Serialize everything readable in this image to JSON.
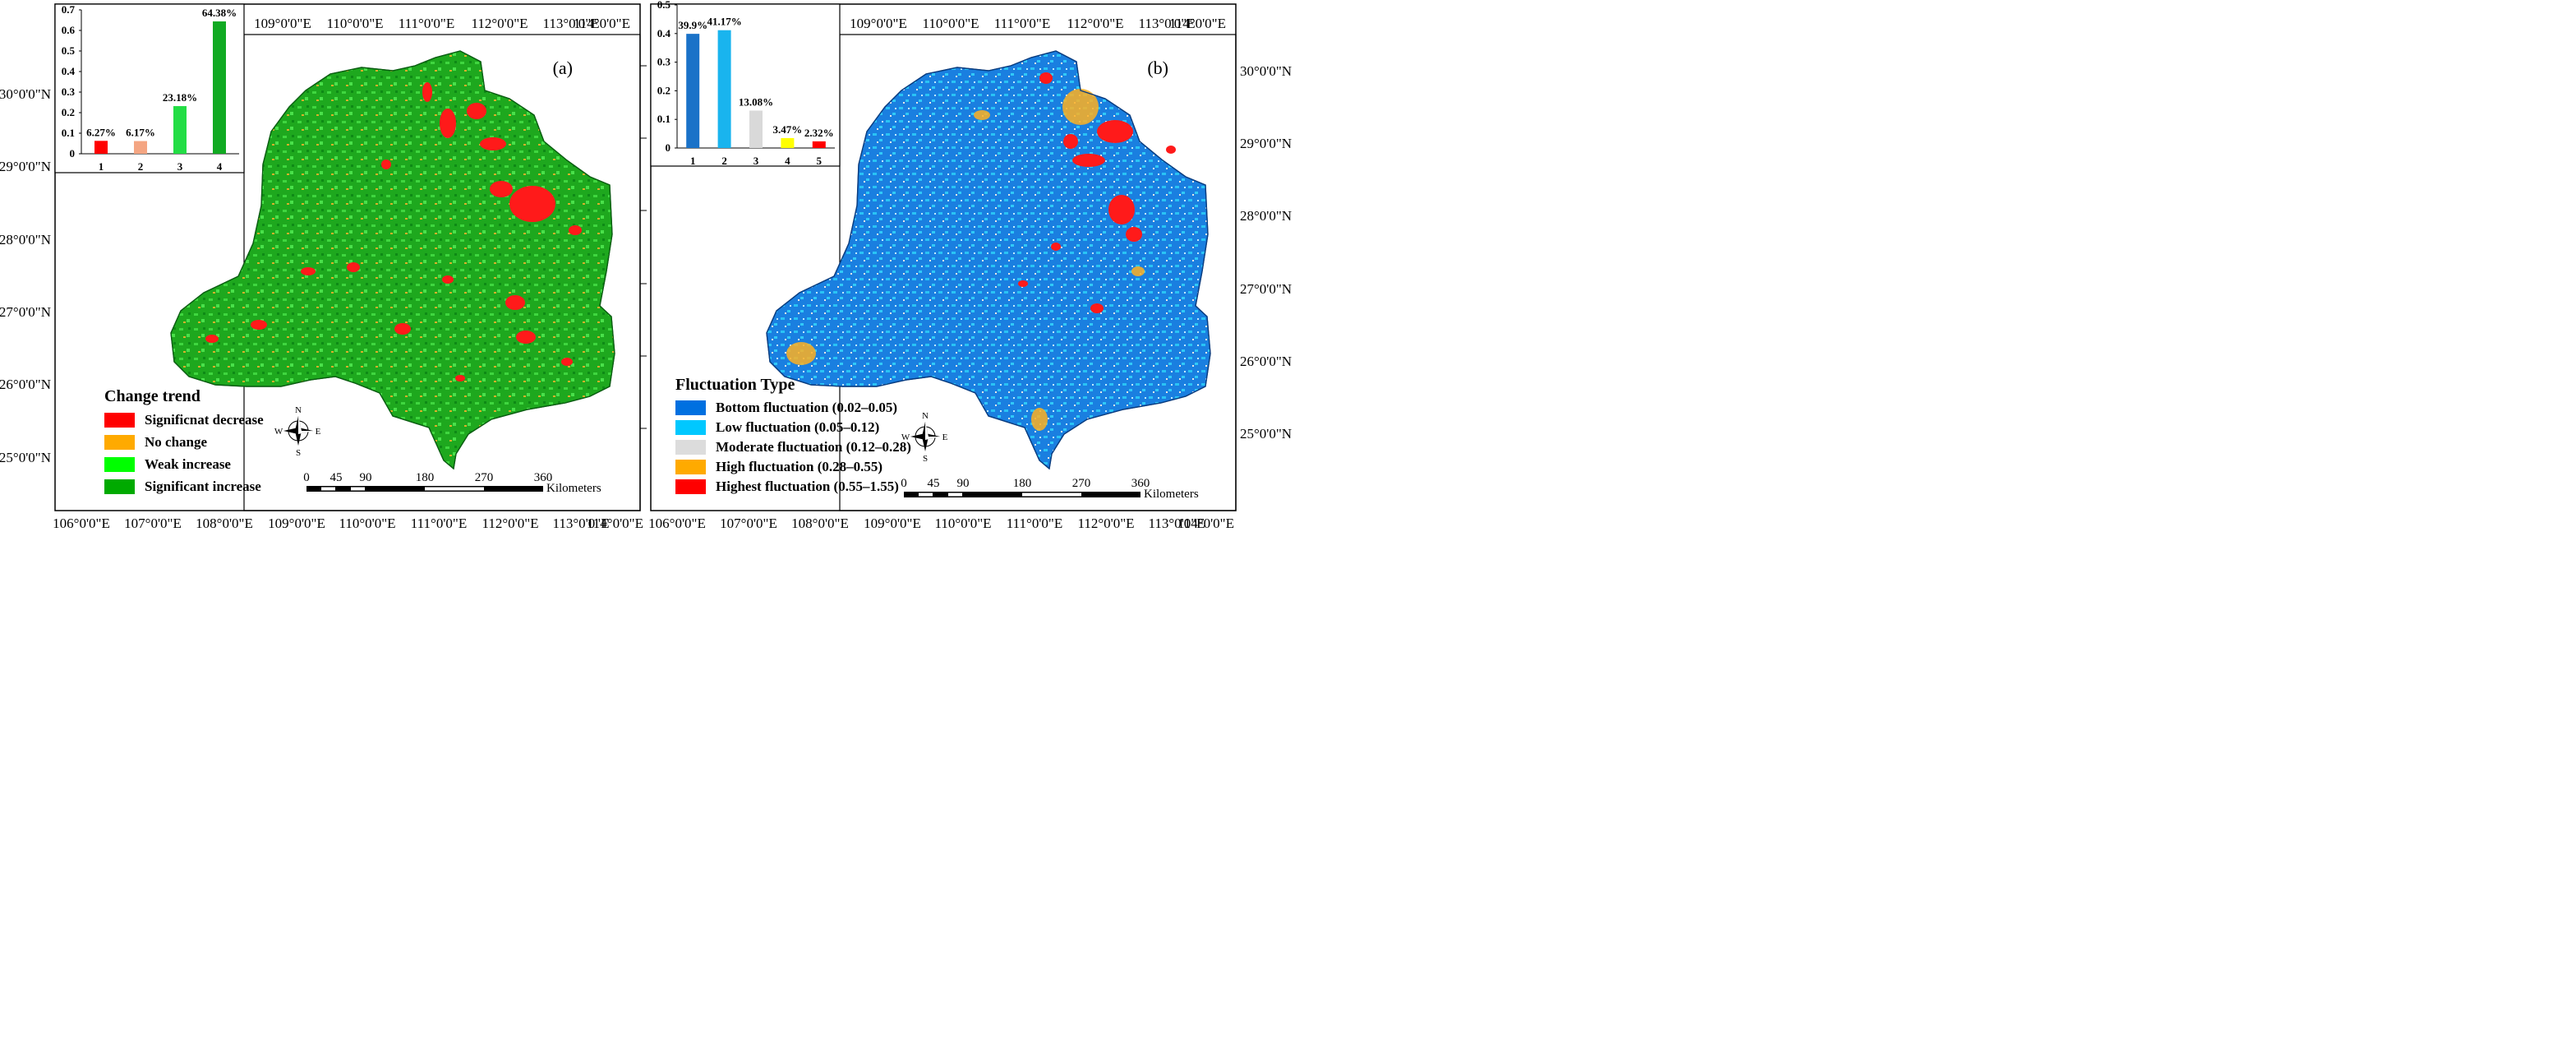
{
  "panel_a": {
    "label": "(a)",
    "top_axis": [
      "109°0'0\"E",
      "110°0'0\"E",
      "111°0'0\"E",
      "112°0'0\"E",
      "113°0'0\"E",
      "114°0'0\"E"
    ],
    "bottom_axis": [
      "106°0'0\"E",
      "107°0'0\"E",
      "108°0'0\"E",
      "109°0'0\"E",
      "110°0'0\"E",
      "111°0'0\"E",
      "112°0'0\"E",
      "113°0'0\"E",
      "114°0'0\"E"
    ],
    "left_axis": [
      "30°0'0\"N",
      "29°0'0\"N",
      "28°0'0\"N",
      "27°0'0\"N",
      "26°0'0\"N",
      "25°0'0\"N"
    ],
    "legend": {
      "title": "Change trend",
      "items": [
        {
          "label": "Significnat decrease",
          "color": "#ff0000"
        },
        {
          "label": "No change",
          "color": "#ffaa00"
        },
        {
          "label": "Weak increase",
          "color": "#00ff00"
        },
        {
          "label": "Significant increase",
          "color": "#00aa00"
        }
      ]
    },
    "scale_bar": {
      "ticks": [
        "0",
        "45",
        "90",
        "180",
        "270",
        "360"
      ],
      "unit": "Kilometers"
    },
    "compass": {
      "n": "N",
      "s": "S",
      "e": "E",
      "w": "W"
    }
  },
  "panel_b": {
    "label": "(b)",
    "top_axis": [
      "109°0'0\"E",
      "110°0'0\"E",
      "111°0'0\"E",
      "112°0'0\"E",
      "113°0'0\"E",
      "114°0'0\"E"
    ],
    "bottom_axis": [
      "106°0'0\"E",
      "107°0'0\"E",
      "108°0'0\"E",
      "109°0'0\"E",
      "110°0'0\"E",
      "111°0'0\"E",
      "112°0'0\"E",
      "113°0'0\"E",
      "114°0'0\"E"
    ],
    "right_axis": [
      "30°0'0\"N",
      "29°0'0\"N",
      "28°0'0\"N",
      "27°0'0\"N",
      "26°0'0\"N",
      "25°0'0\"N"
    ],
    "legend": {
      "title": "Fluctuation Type",
      "items": [
        {
          "label": "Bottom fluctuation (0.02–0.05)",
          "color": "#0070e0"
        },
        {
          "label": "Low fluctuation (0.05–0.12)",
          "color": "#00c8ff"
        },
        {
          "label": "Moderate fluctuation (0.12–0.28)",
          "color": "#dcdcdc"
        },
        {
          "label": "High fluctuation (0.28–0.55)",
          "color": "#ffaa00"
        },
        {
          "label": "Highest fluctuation (0.55–1.55)",
          "color": "#ff0000"
        }
      ]
    },
    "scale_bar": {
      "ticks": [
        "0",
        "45",
        "90",
        "180",
        "270",
        "360"
      ],
      "unit": "Kilometers"
    },
    "compass": {
      "n": "N",
      "s": "S",
      "e": "E",
      "w": "W"
    }
  },
  "chart_data": [
    {
      "type": "bar",
      "categories": [
        "1",
        "2",
        "3",
        "4"
      ],
      "values": [
        0.0627,
        0.0617,
        0.2318,
        0.6438
      ],
      "data_labels": [
        "6.27%",
        "6.17%",
        "23.18%",
        "64.38%"
      ],
      "colors": [
        "#ff0000",
        "#f4a582",
        "#22dd44",
        "#11aa22"
      ],
      "yticks": [
        "0",
        "0.1",
        "0.2",
        "0.3",
        "0.4",
        "0.5",
        "0.6",
        "0.7"
      ],
      "ylim": [
        0,
        0.7
      ]
    },
    {
      "type": "bar",
      "categories": [
        "1",
        "2",
        "3",
        "4",
        "5"
      ],
      "values": [
        0.399,
        0.4117,
        0.1308,
        0.0347,
        0.0232
      ],
      "data_labels": [
        "39.9%",
        "41.17%",
        "13.08%",
        "3.47%",
        "2.32%"
      ],
      "colors": [
        "#1a72c8",
        "#19b4ee",
        "#d9d9d9",
        "#ffff00",
        "#ff0000"
      ],
      "yticks": [
        "0",
        "0.1",
        "0.2",
        "0.3",
        "0.4",
        "0.5"
      ],
      "ylim": [
        0,
        0.5
      ]
    }
  ]
}
